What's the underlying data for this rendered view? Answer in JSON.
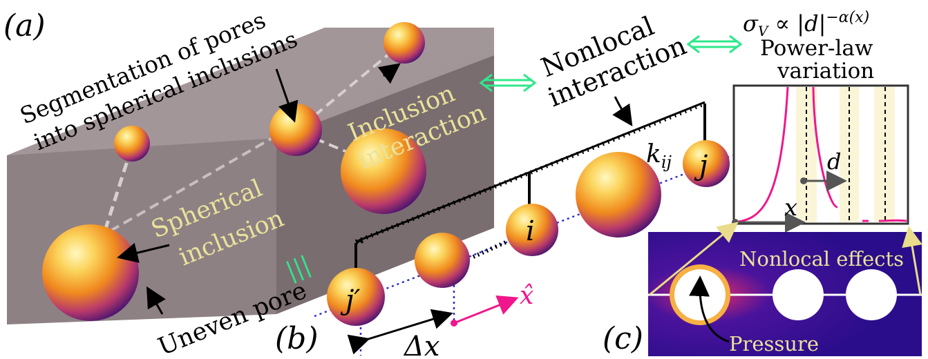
{
  "panels": {
    "a": "(a)",
    "b": "(b)",
    "c": "(c)"
  },
  "labels": {
    "segmentation_line1": "Segmentation of pores",
    "segmentation_line2": "into spherical inclusions",
    "inclusion_interaction_line1": "Inclusion",
    "inclusion_interaction_line2": "interaction",
    "spherical_inclusion_line1": "Spherical",
    "spherical_inclusion_line2": "inclusion",
    "uneven_pore": "Uneven pore",
    "nonlocal_interaction_line1": "Nonlocal",
    "nonlocal_interaction_line2": "interaction",
    "power_law_line1": "Power-law",
    "power_law_line2": "variation",
    "nonlocal_effects": "Nonlocal effects",
    "pressure": "Pressure",
    "equiv_symbol": "|||"
  },
  "math": {
    "sigma_formula_sigma": "σ",
    "sigma_formula_sub": "V",
    "sigma_formula_rest": " ∝ |d|",
    "sigma_formula_exp": "−α(x)",
    "k_ij_k": "k",
    "k_ij_sub": "ij",
    "j": "j",
    "i": "i",
    "j_prime": "j′",
    "delta_x": "Δx",
    "x_hat": "x̂",
    "x": "x",
    "d": "d"
  },
  "colors": {
    "sphere_light": "#fff2a0",
    "sphere_mid": "#f5a623",
    "sphere_dark": "#8a1d8c",
    "block_top": "#a6999b",
    "block_side": "#7d6f72",
    "block_front": "#8c7f82",
    "label_yellow": "#e9e29a",
    "arrow_green": "#2ee88a",
    "curve_pink": "#f0168c",
    "dotted_blue": "#2a2ad8",
    "field_dark": "#2a0f8c"
  }
}
